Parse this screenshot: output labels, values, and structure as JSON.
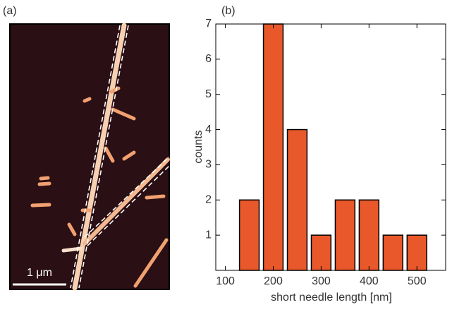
{
  "image_panel": {
    "label": "(a)",
    "scale_bar": "1 μm"
  },
  "chart_data": {
    "type": "histogram",
    "label": "(b)",
    "xlabel": "short needle length [nm]",
    "ylabel": "counts",
    "bins": [
      125,
      175,
      225,
      275,
      325,
      375,
      425,
      475,
      525
    ],
    "values": [
      2,
      7,
      4,
      1,
      2,
      2,
      1,
      1
    ],
    "color": "#e8582a",
    "xlim": [
      80,
      560
    ],
    "ylim": [
      0,
      7
    ],
    "xticks": [
      100,
      200,
      300,
      400,
      500
    ],
    "yticks": [
      1,
      2,
      3,
      4,
      5,
      6,
      7
    ]
  }
}
